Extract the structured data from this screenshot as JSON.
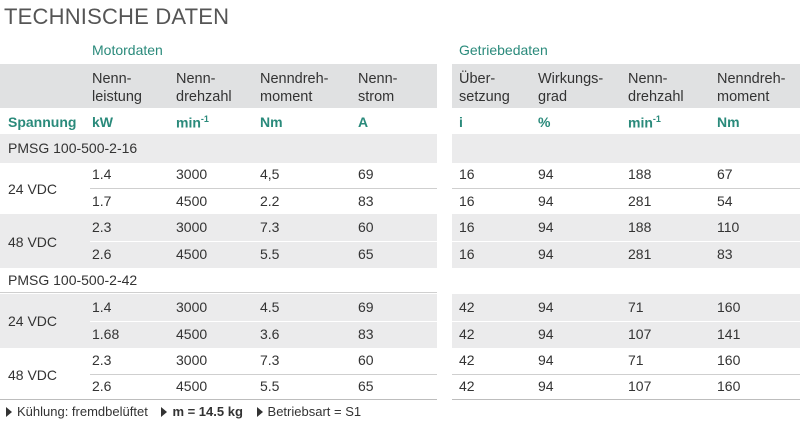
{
  "title": "TECHNISCHE DATEN",
  "sections": {
    "motor": "Motordaten",
    "gear": "Getriebedaten"
  },
  "headers": {
    "nennleistung": [
      "Nenn-",
      "leistung"
    ],
    "nenndrehzahl": [
      "Nenn-",
      "drehzahl"
    ],
    "nenndrehmoment": [
      "Nenndreh-",
      "moment"
    ],
    "nennstrom": [
      "Nenn-",
      "strom"
    ],
    "uebersetzung": [
      "Über-",
      "setzung"
    ],
    "wirkungsgrad": [
      "Wirkungs-",
      "grad"
    ],
    "g_nenndrehzahl": [
      "Nenn-",
      "drehzahl"
    ],
    "g_nenndrehmoment": [
      "Nenndreh-",
      "moment"
    ]
  },
  "units": {
    "spannung": "Spannung",
    "kw": "kW",
    "min": "min",
    "min_exp": "-1",
    "nm": "Nm",
    "a": "A",
    "i": "i",
    "pct": "%",
    "g_min": "min",
    "g_min_exp": "-1",
    "g_nm": "Nm"
  },
  "groups": [
    {
      "name": "PMSG 100-500-2-16",
      "voltages": [
        {
          "label": "24 VDC",
          "rows": [
            [
              "1.4",
              "3000",
              "4,5",
              "69",
              "16",
              "94",
              "188",
              "67"
            ],
            [
              "1.7",
              "4500",
              "2.2",
              "83",
              "16",
              "94",
              "281",
              "54"
            ]
          ]
        },
        {
          "label": "48 VDC",
          "rows": [
            [
              "2.3",
              "3000",
              "7.3",
              "60",
              "16",
              "94",
              "188",
              "110"
            ],
            [
              "2.6",
              "4500",
              "5.5",
              "65",
              "16",
              "94",
              "281",
              "83"
            ]
          ]
        }
      ]
    },
    {
      "name": "PMSG 100-500-2-42",
      "voltages": [
        {
          "label": "24 VDC",
          "rows": [
            [
              "1.4",
              "3000",
              "4.5",
              "69",
              "42",
              "94",
              "71",
              "160"
            ],
            [
              "1.68",
              "4500",
              "3.6",
              "83",
              "42",
              "94",
              "107",
              "141"
            ]
          ]
        },
        {
          "label": "48 VDC",
          "rows": [
            [
              "2.3",
              "3000",
              "7.3",
              "60",
              "42",
              "94",
              "71",
              "160"
            ],
            [
              "2.6",
              "4500",
              "5.5",
              "65",
              "42",
              "94",
              "107",
              "160"
            ]
          ]
        }
      ]
    }
  ],
  "footer": {
    "kuehlung": "Kühlung: fremdbelüftet",
    "masse": "m = 14.5 kg",
    "betriebsart": "Betriebsart = S1"
  }
}
